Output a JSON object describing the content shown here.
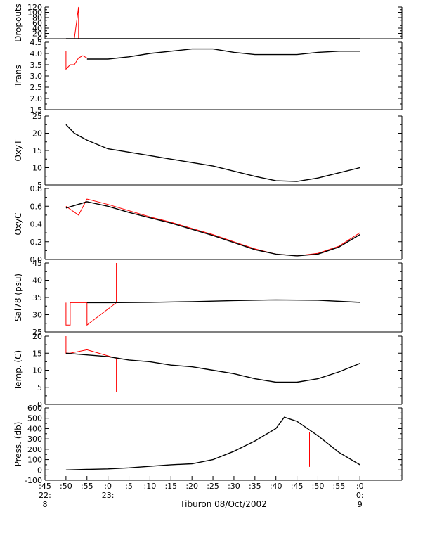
{
  "chart_data": {
    "type": "line",
    "xlabel": "Tiburon 08/Oct/2002",
    "x_unit": "minutes",
    "xlim": [
      "22:45",
      "0:10"
    ],
    "x_ticks": [
      {
        "label": ":45",
        "line2": "22:",
        "line3": "8"
      },
      {
        "label": ":50"
      },
      {
        "label": ":55"
      },
      {
        "label": ":0",
        "line2": "23:"
      },
      {
        "label": ":5"
      },
      {
        "label": ":10"
      },
      {
        "label": ":15"
      },
      {
        "label": ":20"
      },
      {
        "label": ":25"
      },
      {
        "label": ":30"
      },
      {
        "label": ":35"
      },
      {
        "label": ":40"
      },
      {
        "label": ":45"
      },
      {
        "label": ":50"
      },
      {
        "label": ":55"
      },
      {
        "label": ":0",
        "line2": "0:",
        "line3": "9"
      }
    ],
    "colors": {
      "series": "#000000",
      "raw": "#ff0000",
      "frame": "#000000"
    },
    "panels": [
      {
        "ylabel": "Dropouts",
        "ylim": [
          0,
          120
        ],
        "yticks": [
          "0",
          "20",
          "40",
          "60",
          "80",
          "100",
          "120"
        ],
        "series": [
          {
            "color": "#ff0000",
            "x": [
              "22:50",
              "22:52",
              "22:53",
              "22:53"
            ],
            "y": [
              0,
              0,
              120,
              0
            ]
          },
          {
            "color": "#000000",
            "x": [
              "22:50",
              "22:53",
              "0:00"
            ],
            "y": [
              0,
              0,
              0
            ]
          }
        ]
      },
      {
        "ylabel": "Trans",
        "ylim": [
          1.5,
          4.5
        ],
        "yticks": [
          "1.5",
          "2.0",
          "2.5",
          "3.0",
          "3.5",
          "4.0",
          "4.5"
        ],
        "series": [
          {
            "color": "#ff0000",
            "x": [
              "22:50",
              "22:50",
              "22:51",
              "22:52",
              "22:53",
              "22:54",
              "22:55"
            ],
            "y": [
              4.1,
              3.3,
              3.5,
              3.5,
              3.8,
              3.9,
              3.8
            ]
          },
          {
            "color": "#000000",
            "x": [
              "22:55",
              "23:00",
              "23:05",
              "23:10",
              "23:15",
              "23:20",
              "23:25",
              "23:30",
              "23:35",
              "23:40",
              "23:45",
              "23:50",
              "23:55",
              "0:00"
            ],
            "y": [
              3.75,
              3.75,
              3.85,
              4.0,
              4.1,
              4.2,
              4.2,
              4.05,
              3.95,
              3.95,
              3.95,
              4.05,
              4.1,
              4.1
            ]
          }
        ]
      },
      {
        "ylabel": "OxyT",
        "ylim": [
          5,
          25
        ],
        "yticks": [
          "5",
          "10",
          "15",
          "20",
          "25"
        ],
        "series": [
          {
            "color": "#000000",
            "x": [
              "22:50",
              "22:52",
              "22:55",
              "23:00",
              "23:05",
              "23:10",
              "23:15",
              "23:20",
              "23:25",
              "23:30",
              "23:35",
              "23:40",
              "23:45",
              "23:50",
              "23:55",
              "0:00"
            ],
            "y": [
              22.5,
              20,
              18,
              15.5,
              14.5,
              13.5,
              12.5,
              11.5,
              10.5,
              9,
              7.5,
              6.2,
              6,
              7,
              8.5,
              10
            ]
          }
        ]
      },
      {
        "ylabel": "OxyC",
        "ylim": [
          0,
          0.8
        ],
        "yticks": [
          "0.0",
          "0.2",
          "0.4",
          "0.6",
          "0.8"
        ],
        "series": [
          {
            "color": "#ff0000",
            "x": [
              "22:50",
              "22:53",
              "22:55",
              "23:00",
              "23:05",
              "23:10",
              "23:15",
              "23:20",
              "23:25",
              "23:30",
              "23:35",
              "23:40",
              "23:45",
              "23:50",
              "23:55",
              "0:00"
            ],
            "y": [
              0.6,
              0.5,
              0.68,
              0.62,
              0.55,
              0.48,
              0.42,
              0.35,
              0.28,
              0.2,
              0.12,
              0.06,
              0.04,
              0.07,
              0.15,
              0.3
            ]
          },
          {
            "color": "#000000",
            "x": [
              "22:50",
              "22:55",
              "23:00",
              "23:05",
              "23:10",
              "23:15",
              "23:20",
              "23:25",
              "23:30",
              "23:35",
              "23:40",
              "23:45",
              "23:50",
              "23:55",
              "0:00"
            ],
            "y": [
              0.58,
              0.65,
              0.6,
              0.53,
              0.47,
              0.41,
              0.34,
              0.27,
              0.19,
              0.11,
              0.06,
              0.04,
              0.06,
              0.14,
              0.28
            ]
          }
        ]
      },
      {
        "ylabel": "Sal78 (psu)",
        "ylim": [
          25,
          45
        ],
        "yticks": [
          "25",
          "30",
          "35",
          "40",
          "45"
        ],
        "series": [
          {
            "color": "#ff0000",
            "x": [
              "22:50",
              "22:50",
              "22:51",
              "22:51",
              "22:55",
              "22:55",
              "23:02",
              "23:02",
              "23:02"
            ],
            "y": [
              33.5,
              27,
              27,
              33.5,
              33.5,
              27,
              33.5,
              45,
              33.5
            ]
          },
          {
            "color": "#000000",
            "x": [
              "22:55",
              "23:00",
              "23:10",
              "23:20",
              "23:30",
              "23:40",
              "23:50",
              "0:00"
            ],
            "y": [
              33.5,
              33.5,
              33.6,
              33.8,
              34.1,
              34.3,
              34.2,
              33.6
            ]
          }
        ]
      },
      {
        "ylabel": "Temp. (C)",
        "ylim": [
          0,
          20
        ],
        "yticks": [
          "0",
          "5",
          "10",
          "15",
          "20"
        ],
        "series": [
          {
            "color": "#ff0000",
            "x": [
              "22:50",
              "22:50",
              "22:51",
              "22:55",
              "23:02",
              "23:02",
              "23:02"
            ],
            "y": [
              20,
              15,
              15,
              16,
              13.5,
              3.5,
              13.5
            ]
          },
          {
            "color": "#000000",
            "x": [
              "22:50",
              "22:55",
              "23:00",
              "23:05",
              "23:10",
              "23:15",
              "23:20",
              "23:25",
              "23:30",
              "23:35",
              "23:40",
              "23:45",
              "23:50",
              "23:55",
              "0:00"
            ],
            "y": [
              15,
              14.5,
              14,
              13,
              12.5,
              11.5,
              11,
              10,
              9,
              7.5,
              6.5,
              6.5,
              7.5,
              9.5,
              12
            ]
          }
        ]
      },
      {
        "ylabel": "Press. (db)",
        "ylim": [
          -100,
          600
        ],
        "yticks": [
          "-100",
          "0",
          "100",
          "200",
          "300",
          "400",
          "500",
          "600"
        ],
        "series": [
          {
            "color": "#ff0000",
            "x": [
              "23:48",
              "23:48",
              "23:48"
            ],
            "y": [
              365,
              30,
              365
            ]
          },
          {
            "color": "#000000",
            "x": [
              "22:50",
              "22:55",
              "23:00",
              "23:05",
              "23:10",
              "23:15",
              "23:20",
              "23:25",
              "23:30",
              "23:35",
              "23:40",
              "23:42",
              "23:45",
              "23:50",
              "23:55",
              "0:00"
            ],
            "y": [
              0,
              5,
              10,
              20,
              35,
              50,
              60,
              100,
              180,
              280,
              400,
              510,
              470,
              330,
              170,
              50
            ]
          }
        ]
      }
    ]
  }
}
